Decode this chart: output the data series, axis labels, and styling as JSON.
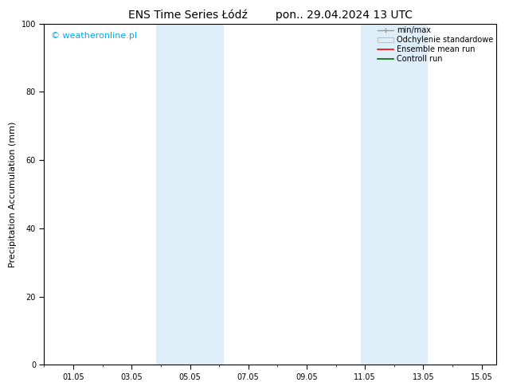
{
  "title": "ENS Time Series Łódź        pon.. 29.04.2024 13 UTC",
  "ylabel": "Precipitation Accumulation (mm)",
  "watermark": "© weatheronline.pl",
  "watermark_color": "#00aaee",
  "ylim": [
    0,
    100
  ],
  "xlim": [
    0.0,
    15.5
  ],
  "yticks": [
    0,
    20,
    40,
    60,
    80,
    100
  ],
  "xtick_labels": [
    "01.05",
    "03.05",
    "05.05",
    "07.05",
    "09.05",
    "11.05",
    "13.05",
    "15.05"
  ],
  "xtick_positions": [
    1,
    3,
    5,
    7,
    9,
    11,
    13,
    15
  ],
  "shaded_bands": [
    {
      "xmin": 3.85,
      "xmax": 4.85,
      "color": "#ddeef8",
      "alpha": 1.0
    },
    {
      "xmin": 4.85,
      "xmax": 6.15,
      "color": "#ddeef8",
      "alpha": 1.0
    },
    {
      "xmin": 10.85,
      "xmax": 11.85,
      "color": "#ddeef8",
      "alpha": 1.0
    },
    {
      "xmin": 11.85,
      "xmax": 13.15,
      "color": "#ddeef8",
      "alpha": 1.0
    }
  ],
  "legend_entries": [
    {
      "label": "min/max",
      "color": "#999999"
    },
    {
      "label": "Odchylenie standardowe",
      "color": "#ccddee"
    },
    {
      "label": "Ensemble mean run",
      "color": "#ff0000"
    },
    {
      "label": "Controll run",
      "color": "#006600"
    }
  ],
  "background_color": "#ffffff",
  "plot_bg_color": "#ffffff",
  "title_fontsize": 10,
  "axis_label_fontsize": 8,
  "tick_fontsize": 7,
  "legend_fontsize": 7,
  "watermark_fontsize": 8
}
